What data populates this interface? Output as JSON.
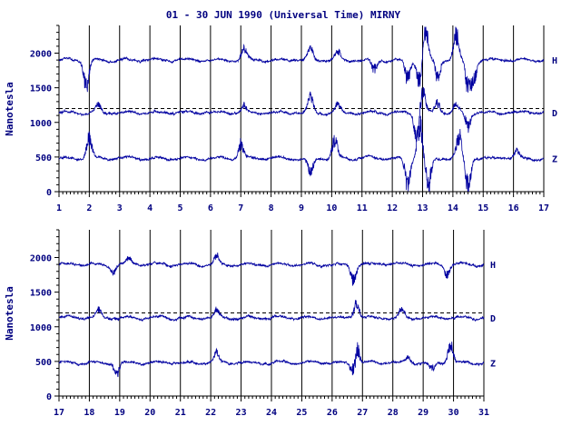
{
  "colors": {
    "trace": "#0000a0",
    "text": "#000080",
    "axis": "#000000",
    "background": "#ffffff"
  },
  "chart_data": [
    {
      "type": "line",
      "title": "01 - 30 JUN 1990 (Universal Time) MIRNY",
      "ylabel": "Nanotesla",
      "xlim": [
        1,
        17
      ],
      "ylim": [
        0,
        2400
      ],
      "x_ticks": [
        "1",
        "2",
        "3",
        "4",
        "5",
        "6",
        "7",
        "8",
        "9",
        "10",
        "11",
        "12",
        "13",
        "14",
        "15",
        "16",
        "17"
      ],
      "y_ticks": [
        "0",
        "500",
        "1000",
        "1500",
        "2000"
      ],
      "reference_line": 1200,
      "series": [
        {
          "name": "H",
          "baseline": 1900,
          "disturbances": [
            {
              "day": 1.9,
              "amp": -350
            },
            {
              "day": 7.1,
              "amp": 130
            },
            {
              "day": 9.3,
              "amp": 150
            },
            {
              "day": 10.2,
              "amp": 120
            },
            {
              "day": 11.4,
              "amp": -150
            },
            {
              "day": 12.5,
              "amp": -250
            },
            {
              "day": 12.9,
              "amp": -300
            },
            {
              "day": 13.1,
              "amp": 450
            },
            {
              "day": 13.5,
              "amp": -250
            },
            {
              "day": 14.1,
              "amp": 350
            },
            {
              "day": 14.5,
              "amp": -400
            },
            {
              "day": 14.7,
              "amp": -250
            }
          ]
        },
        {
          "name": "D",
          "baseline": 1140,
          "disturbances": [
            {
              "day": 2.3,
              "amp": 100
            },
            {
              "day": 7.1,
              "amp": 90
            },
            {
              "day": 9.3,
              "amp": 200
            },
            {
              "day": 10.2,
              "amp": 120
            },
            {
              "day": 12.8,
              "amp": -300
            },
            {
              "day": 13.0,
              "amp": 300
            },
            {
              "day": 13.5,
              "amp": 150
            },
            {
              "day": 14.1,
              "amp": 100
            },
            {
              "day": 14.5,
              "amp": -200
            }
          ]
        },
        {
          "name": "Z",
          "baseline": 480,
          "disturbances": [
            {
              "day": 2.0,
              "amp": 300
            },
            {
              "day": 7.0,
              "amp": 200
            },
            {
              "day": 9.3,
              "amp": -200
            },
            {
              "day": 10.1,
              "amp": 250
            },
            {
              "day": 12.5,
              "amp": -350
            },
            {
              "day": 12.9,
              "amp": 500
            },
            {
              "day": 13.2,
              "amp": -380
            },
            {
              "day": 14.2,
              "amp": 300
            },
            {
              "day": 14.5,
              "amp": -400
            },
            {
              "day": 16.1,
              "amp": 100
            }
          ]
        }
      ]
    },
    {
      "type": "line",
      "title": "",
      "ylabel": "Nanotesla",
      "xlim": [
        17,
        31
      ],
      "ylim": [
        0,
        2400
      ],
      "x_ticks": [
        "17",
        "18",
        "19",
        "20",
        "21",
        "22",
        "23",
        "24",
        "25",
        "26",
        "27",
        "28",
        "29",
        "30",
        "31"
      ],
      "y_ticks": [
        "0",
        "500",
        "1000",
        "1500",
        "2000"
      ],
      "reference_line": 1200,
      "series": [
        {
          "name": "H",
          "baseline": 1900,
          "disturbances": [
            {
              "day": 18.8,
              "amp": -100
            },
            {
              "day": 19.3,
              "amp": 80
            },
            {
              "day": 22.2,
              "amp": 100
            },
            {
              "day": 26.7,
              "amp": -200
            },
            {
              "day": 29.8,
              "amp": -150
            }
          ]
        },
        {
          "name": "D",
          "baseline": 1130,
          "disturbances": [
            {
              "day": 18.3,
              "amp": 100
            },
            {
              "day": 22.2,
              "amp": 100
            },
            {
              "day": 26.8,
              "amp": 200
            },
            {
              "day": 28.3,
              "amp": 100
            }
          ]
        },
        {
          "name": "Z",
          "baseline": 480,
          "disturbances": [
            {
              "day": 18.9,
              "amp": -150
            },
            {
              "day": 22.2,
              "amp": 120
            },
            {
              "day": 26.8,
              "amp": 280
            },
            {
              "day": 26.7,
              "amp": -200
            },
            {
              "day": 28.5,
              "amp": 80
            },
            {
              "day": 29.9,
              "amp": 250
            },
            {
              "day": 29.3,
              "amp": -100
            }
          ]
        }
      ]
    }
  ]
}
